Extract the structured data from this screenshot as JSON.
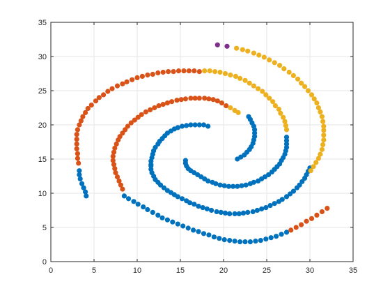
{
  "chart_data": {
    "type": "scatter",
    "title": "",
    "xlabel": "",
    "ylabel": "",
    "xlim": [
      0,
      35
    ],
    "ylim": [
      0,
      35
    ],
    "xticks": [
      0,
      5,
      10,
      15,
      20,
      25,
      30,
      35
    ],
    "yticks": [
      0,
      5,
      10,
      15,
      20,
      25,
      30,
      35
    ],
    "grid": true,
    "box": true,
    "series": [
      {
        "color": "#0072BD",
        "points": [
          [
            18.2,
            19.8
          ],
          [
            17.7,
            20.0
          ],
          [
            17.2,
            20.0
          ],
          [
            16.7,
            20.0
          ],
          [
            16.2,
            20.0
          ],
          [
            15.7,
            19.9
          ],
          [
            15.2,
            19.8
          ],
          [
            14.7,
            19.6
          ],
          [
            14.3,
            19.4
          ],
          [
            13.9,
            19.1
          ],
          [
            13.5,
            18.8
          ],
          [
            13.2,
            18.4
          ],
          [
            12.9,
            18.0
          ],
          [
            12.6,
            17.6
          ],
          [
            12.4,
            17.2
          ],
          [
            12.1,
            16.7
          ],
          [
            11.9,
            16.2
          ],
          [
            11.8,
            15.7
          ],
          [
            11.7,
            15.2
          ],
          [
            11.6,
            14.7
          ],
          [
            11.6,
            14.2
          ],
          [
            15.6,
            14.8
          ],
          [
            15.6,
            14.4
          ],
          [
            15.7,
            14.0
          ],
          [
            15.9,
            13.6
          ],
          [
            16.2,
            13.3
          ],
          [
            16.6,
            13.0
          ],
          [
            17.0,
            12.7
          ],
          [
            17.4,
            12.4
          ],
          [
            17.8,
            12.1
          ],
          [
            18.2,
            11.8
          ],
          [
            18.7,
            11.6
          ],
          [
            19.1,
            11.4
          ],
          [
            19.6,
            11.2
          ],
          [
            20.1,
            11.1
          ],
          [
            20.6,
            11.0
          ],
          [
            21.1,
            11.0
          ],
          [
            21.6,
            11.0
          ],
          [
            22.1,
            11.1
          ],
          [
            22.6,
            11.2
          ],
          [
            23.1,
            11.4
          ],
          [
            23.5,
            11.6
          ],
          [
            24.0,
            11.8
          ],
          [
            24.4,
            12.1
          ],
          [
            24.8,
            12.4
          ],
          [
            25.2,
            12.7
          ],
          [
            25.6,
            13.1
          ],
          [
            25.9,
            13.5
          ],
          [
            26.2,
            13.9
          ],
          [
            26.5,
            14.3
          ],
          [
            26.7,
            14.8
          ],
          [
            26.9,
            15.2
          ],
          [
            27.1,
            15.7
          ],
          [
            27.2,
            16.2
          ],
          [
            27.3,
            16.7
          ],
          [
            27.3,
            17.2
          ],
          [
            27.3,
            17.7
          ],
          [
            27.3,
            18.2
          ],
          [
            21.6,
            15.0
          ],
          [
            22.0,
            15.3
          ],
          [
            22.4,
            15.6
          ],
          [
            22.7,
            16.0
          ],
          [
            23.0,
            16.4
          ],
          [
            23.2,
            16.8
          ],
          [
            23.4,
            17.3
          ],
          [
            23.5,
            17.8
          ],
          [
            23.6,
            18.3
          ],
          [
            23.6,
            18.8
          ],
          [
            23.6,
            19.3
          ],
          [
            23.5,
            19.8
          ],
          [
            23.3,
            20.3
          ],
          [
            23.1,
            20.8
          ],
          [
            22.9,
            21.2
          ],
          [
            11.6,
            14.0
          ],
          [
            11.6,
            13.5
          ],
          [
            11.7,
            13.0
          ],
          [
            11.9,
            12.5
          ],
          [
            12.1,
            12.0
          ],
          [
            12.4,
            11.6
          ],
          [
            12.7,
            11.2
          ],
          [
            13.1,
            10.8
          ],
          [
            13.5,
            10.4
          ],
          [
            13.9,
            10.1
          ],
          [
            14.3,
            9.8
          ],
          [
            14.7,
            9.5
          ],
          [
            15.2,
            9.2
          ],
          [
            15.7,
            8.9
          ],
          [
            16.1,
            8.6
          ],
          [
            16.6,
            8.4
          ],
          [
            17.1,
            8.1
          ],
          [
            17.6,
            7.9
          ],
          [
            18.1,
            7.7
          ],
          [
            18.6,
            7.5
          ],
          [
            19.2,
            7.3
          ],
          [
            19.7,
            7.2
          ],
          [
            20.2,
            7.1
          ],
          [
            20.7,
            7.0
          ],
          [
            21.3,
            7.0
          ],
          [
            21.8,
            7.0
          ],
          [
            22.3,
            7.1
          ],
          [
            22.8,
            7.2
          ],
          [
            23.4,
            7.3
          ],
          [
            23.9,
            7.5
          ],
          [
            24.4,
            7.7
          ],
          [
            24.9,
            7.9
          ],
          [
            25.4,
            8.2
          ],
          [
            25.9,
            8.5
          ],
          [
            26.4,
            8.8
          ],
          [
            26.8,
            9.1
          ],
          [
            27.3,
            9.5
          ],
          [
            27.7,
            9.9
          ],
          [
            28.1,
            10.3
          ],
          [
            28.5,
            10.8
          ],
          [
            28.8,
            11.2
          ],
          [
            29.1,
            11.7
          ],
          [
            29.4,
            12.2
          ],
          [
            29.6,
            12.7
          ],
          [
            29.8,
            13.2
          ],
          [
            30.0,
            13.7
          ],
          [
            3.3,
            13.3
          ],
          [
            3.3,
            12.7
          ],
          [
            3.4,
            12.1
          ],
          [
            3.6,
            11.4
          ],
          [
            3.8,
            10.8
          ],
          [
            4.0,
            10.2
          ],
          [
            4.1,
            9.6
          ],
          [
            8.5,
            9.6
          ],
          [
            9.0,
            9.2
          ],
          [
            9.6,
            8.8
          ],
          [
            10.1,
            8.4
          ],
          [
            10.7,
            8.0
          ],
          [
            11.2,
            7.6
          ],
          [
            11.8,
            7.2
          ],
          [
            12.4,
            6.8
          ],
          [
            12.9,
            6.4
          ],
          [
            13.5,
            6.1
          ],
          [
            14.1,
            5.8
          ],
          [
            14.7,
            5.5
          ],
          [
            15.3,
            5.2
          ],
          [
            15.9,
            4.9
          ],
          [
            16.5,
            4.6
          ],
          [
            17.1,
            4.4
          ],
          [
            17.7,
            4.1
          ],
          [
            18.3,
            3.9
          ],
          [
            18.9,
            3.6
          ],
          [
            19.5,
            3.4
          ],
          [
            20.1,
            3.2
          ],
          [
            20.7,
            3.1
          ],
          [
            21.3,
            3.0
          ],
          [
            21.9,
            2.9
          ],
          [
            22.5,
            2.9
          ],
          [
            23.1,
            2.9
          ],
          [
            23.7,
            3.0
          ],
          [
            24.3,
            3.1
          ],
          [
            24.9,
            3.3
          ],
          [
            25.5,
            3.5
          ],
          [
            26.1,
            3.7
          ],
          [
            26.7,
            4.0
          ],
          [
            27.3,
            4.3
          ]
        ]
      },
      {
        "color": "#D95319",
        "points": [
          [
            17.2,
            27.8
          ],
          [
            16.6,
            27.9
          ],
          [
            16.0,
            27.9
          ],
          [
            15.4,
            27.9
          ],
          [
            14.8,
            27.9
          ],
          [
            14.2,
            27.8
          ],
          [
            13.6,
            27.8
          ],
          [
            13.0,
            27.7
          ],
          [
            12.4,
            27.6
          ],
          [
            11.8,
            27.4
          ],
          [
            11.2,
            27.3
          ],
          [
            10.6,
            27.1
          ],
          [
            10.0,
            26.9
          ],
          [
            9.4,
            26.6
          ],
          [
            8.8,
            26.3
          ],
          [
            8.3,
            26.0
          ],
          [
            7.7,
            25.7
          ],
          [
            7.1,
            25.3
          ],
          [
            6.6,
            24.9
          ],
          [
            6.1,
            24.4
          ],
          [
            5.6,
            24.0
          ],
          [
            5.2,
            23.5
          ],
          [
            4.7,
            22.9
          ],
          [
            4.3,
            22.4
          ],
          [
            4.0,
            21.8
          ],
          [
            3.7,
            21.2
          ],
          [
            3.5,
            20.6
          ],
          [
            3.3,
            20.0
          ],
          [
            3.1,
            19.3
          ],
          [
            3.0,
            18.6
          ],
          [
            3.0,
            17.9
          ],
          [
            3.0,
            17.2
          ],
          [
            3.0,
            16.5
          ],
          [
            3.1,
            15.8
          ],
          [
            3.1,
            15.1
          ],
          [
            3.2,
            14.4
          ],
          [
            20.3,
            22.8
          ],
          [
            19.8,
            23.2
          ],
          [
            19.3,
            23.5
          ],
          [
            18.8,
            23.7
          ],
          [
            18.3,
            23.8
          ],
          [
            17.8,
            23.9
          ],
          [
            17.2,
            23.9
          ],
          [
            16.7,
            23.9
          ],
          [
            16.2,
            23.9
          ],
          [
            15.6,
            23.8
          ],
          [
            15.1,
            23.7
          ],
          [
            14.6,
            23.6
          ],
          [
            14.0,
            23.4
          ],
          [
            13.5,
            23.2
          ],
          [
            13.0,
            23.0
          ],
          [
            12.5,
            22.8
          ],
          [
            12.0,
            22.5
          ],
          [
            11.5,
            22.2
          ],
          [
            11.0,
            21.9
          ],
          [
            10.5,
            21.5
          ],
          [
            10.1,
            21.1
          ],
          [
            9.7,
            20.7
          ],
          [
            9.3,
            20.3
          ],
          [
            8.9,
            19.8
          ],
          [
            8.6,
            19.3
          ],
          [
            8.3,
            18.8
          ],
          [
            8.0,
            18.3
          ],
          [
            7.8,
            17.8
          ],
          [
            7.6,
            17.2
          ],
          [
            7.4,
            16.6
          ],
          [
            7.3,
            16.0
          ],
          [
            7.2,
            15.4
          ],
          [
            7.2,
            14.8
          ],
          [
            7.3,
            14.2
          ],
          [
            7.4,
            13.6
          ],
          [
            7.5,
            13.0
          ],
          [
            7.7,
            12.4
          ],
          [
            7.9,
            11.8
          ],
          [
            8.1,
            11.2
          ],
          [
            8.3,
            10.6
          ],
          [
            27.8,
            4.6
          ],
          [
            28.4,
            5.0
          ],
          [
            29.0,
            5.4
          ],
          [
            29.6,
            5.9
          ],
          [
            30.2,
            6.3
          ],
          [
            30.8,
            6.8
          ],
          [
            31.4,
            7.3
          ],
          [
            32.0,
            7.8
          ]
        ]
      },
      {
        "color": "#EDB120",
        "points": [
          [
            17.8,
            27.9
          ],
          [
            18.4,
            27.9
          ],
          [
            19.0,
            27.8
          ],
          [
            19.6,
            27.7
          ],
          [
            20.2,
            27.5
          ],
          [
            20.8,
            27.3
          ],
          [
            21.4,
            27.1
          ],
          [
            21.9,
            26.8
          ],
          [
            22.5,
            26.5
          ],
          [
            23.0,
            26.1
          ],
          [
            23.5,
            25.7
          ],
          [
            24.0,
            25.3
          ],
          [
            24.5,
            24.9
          ],
          [
            24.9,
            24.4
          ],
          [
            25.3,
            23.9
          ],
          [
            25.7,
            23.4
          ],
          [
            26.0,
            22.8
          ],
          [
            26.4,
            22.3
          ],
          [
            26.6,
            21.7
          ],
          [
            26.9,
            21.1
          ],
          [
            27.1,
            20.5
          ],
          [
            27.2,
            19.9
          ],
          [
            27.3,
            19.3
          ],
          [
            21.5,
            31.2
          ],
          [
            22.2,
            31.0
          ],
          [
            22.8,
            30.8
          ],
          [
            23.5,
            30.5
          ],
          [
            24.1,
            30.2
          ],
          [
            24.7,
            29.9
          ],
          [
            25.3,
            29.5
          ],
          [
            25.9,
            29.1
          ],
          [
            26.5,
            28.7
          ],
          [
            27.0,
            28.2
          ],
          [
            27.6,
            27.7
          ],
          [
            28.1,
            27.2
          ],
          [
            28.6,
            26.7
          ],
          [
            29.0,
            26.1
          ],
          [
            29.4,
            25.6
          ],
          [
            29.8,
            25.0
          ],
          [
            30.2,
            24.4
          ],
          [
            30.5,
            23.8
          ],
          [
            30.8,
            23.2
          ],
          [
            31.0,
            22.5
          ],
          [
            31.2,
            21.9
          ],
          [
            31.4,
            21.2
          ],
          [
            31.5,
            20.5
          ],
          [
            31.6,
            19.8
          ],
          [
            31.6,
            19.2
          ],
          [
            31.6,
            18.5
          ],
          [
            31.6,
            17.8
          ],
          [
            31.5,
            17.1
          ],
          [
            31.4,
            16.4
          ],
          [
            31.2,
            15.7
          ],
          [
            31.0,
            15.1
          ],
          [
            30.7,
            14.5
          ],
          [
            30.4,
            13.9
          ],
          [
            30.1,
            13.3
          ],
          [
            20.8,
            22.5
          ],
          [
            21.3,
            22.1
          ],
          [
            21.7,
            21.8
          ]
        ]
      },
      {
        "color": "#7E2F8E",
        "points": [
          [
            19.3,
            31.7
          ],
          [
            20.4,
            31.5
          ]
        ]
      }
    ]
  }
}
